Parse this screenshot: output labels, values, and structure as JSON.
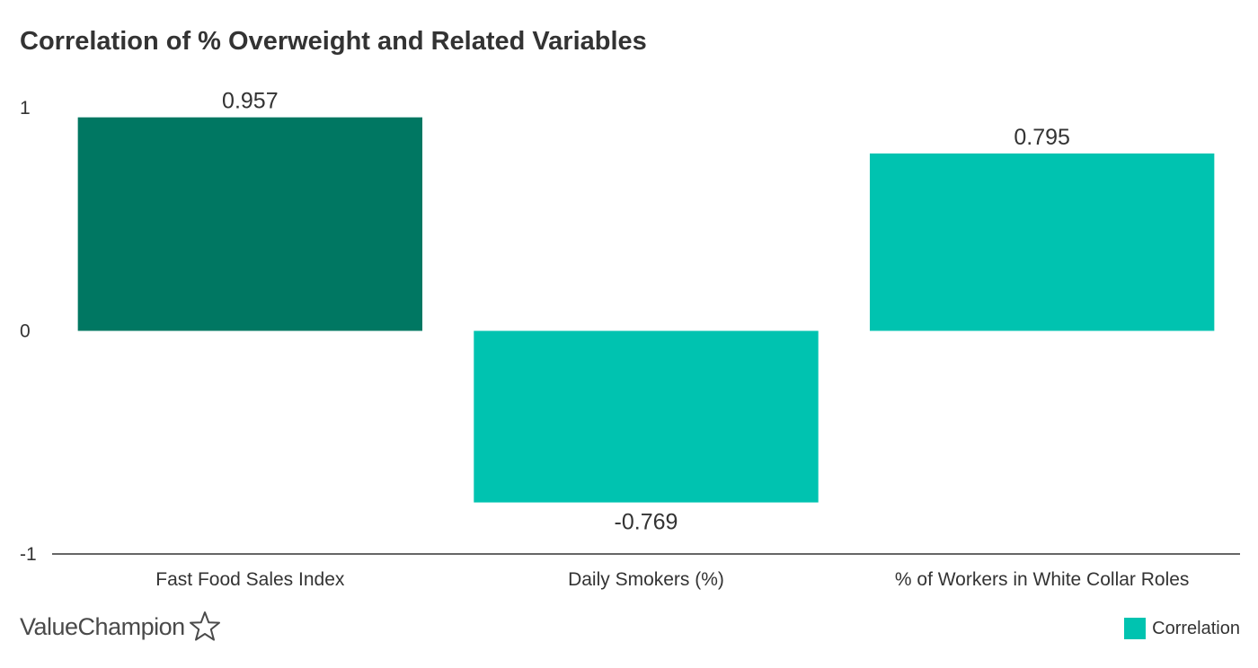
{
  "chart_data": {
    "type": "bar",
    "title": "Correlation of % Overweight and Related Variables",
    "categories": [
      "Fast Food Sales Index",
      "Daily Smokers (%)",
      "% of Workers in White Collar Roles"
    ],
    "series": [
      {
        "name": "Correlation",
        "values": [
          0.957,
          -0.769,
          0.795
        ]
      }
    ],
    "data_labels": [
      "0.957",
      "-0.769",
      "0.795"
    ],
    "ylim": [
      -1,
      1
    ],
    "yticks": [
      1,
      0,
      -1
    ],
    "ytick_labels": [
      "1",
      "0",
      "-1"
    ],
    "xlabel": "",
    "ylabel": "",
    "grid": false,
    "legend": "bottom-right",
    "colors": {
      "highlight": "#007762",
      "default": "#00c3b0"
    },
    "highlight_index": 0
  },
  "brand": {
    "name": "ValueChampion",
    "icon": "star-outline-icon"
  },
  "legend": {
    "label": "Correlation",
    "color": "#00c3b0"
  }
}
